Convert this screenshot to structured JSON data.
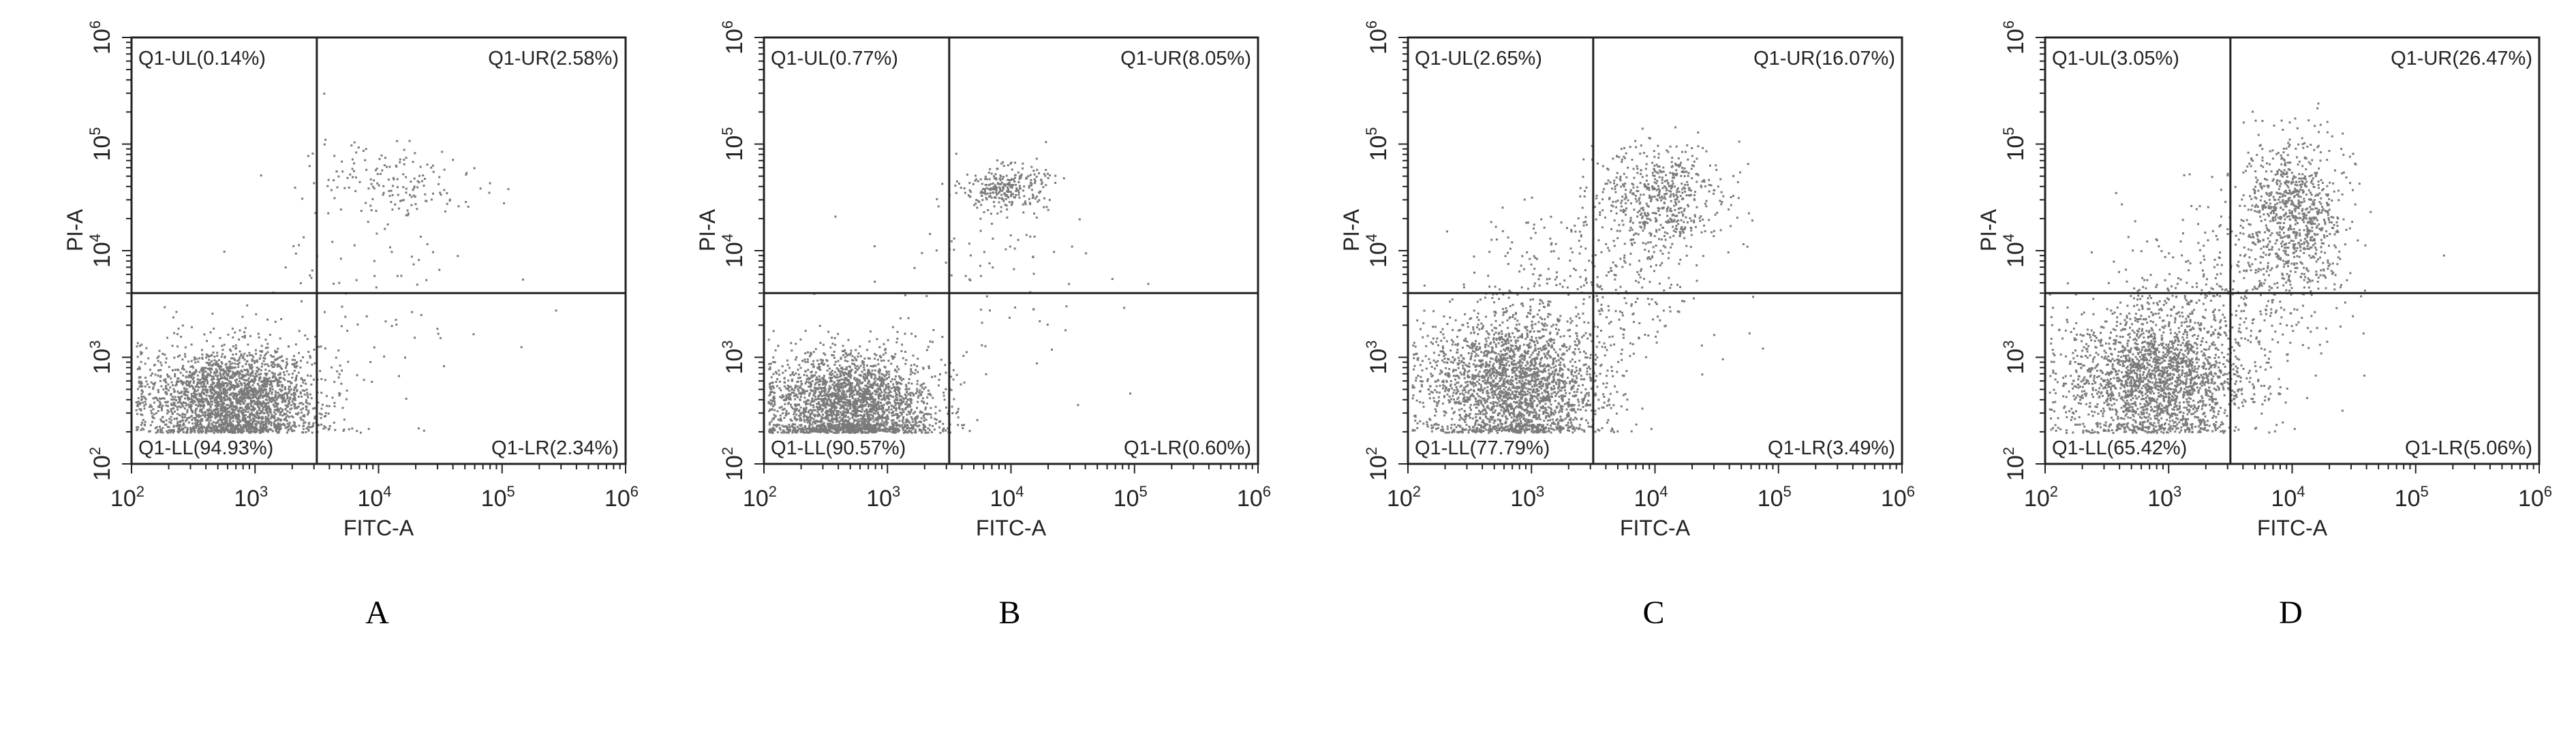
{
  "chart_data": [
    {
      "type": "scatter",
      "panel_label": "A",
      "xlabel": "FITC-A",
      "ylabel": "PI-A",
      "x_scale": "log",
      "y_scale": "log",
      "xlim": [
        100,
        1000000
      ],
      "ylim": [
        100,
        1000000
      ],
      "x_ticks": [
        2,
        3,
        4,
        5,
        6
      ],
      "y_ticks": [
        2,
        3,
        4,
        5,
        6
      ],
      "gate": {
        "x": 3162,
        "y": 4000
      },
      "quadrants": {
        "UL": "Q1-UL(0.14%)",
        "UR": "Q1-UR(2.58%)",
        "LL": "Q1-LL(94.93%)",
        "LR": "Q1-LR(2.34%)"
      },
      "populations": [
        {
          "center_log": [
            2.8,
            2.6
          ],
          "spread_log": [
            0.35,
            0.25
          ],
          "count": 2600
        },
        {
          "center_log": [
            4.15,
            4.65
          ],
          "spread_log": [
            0.32,
            0.17
          ],
          "count": 160
        },
        {
          "center_log": [
            3.8,
            3.5
          ],
          "spread_log": [
            0.6,
            0.6
          ],
          "count": 90
        }
      ]
    },
    {
      "type": "scatter",
      "panel_label": "B",
      "xlabel": "FITC-A",
      "ylabel": "PI-A",
      "x_scale": "log",
      "y_scale": "log",
      "xlim": [
        100,
        1000000
      ],
      "ylim": [
        100,
        1000000
      ],
      "x_ticks": [
        2,
        3,
        4,
        5,
        6
      ],
      "y_ticks": [
        2,
        3,
        4,
        5,
        6
      ],
      "gate": {
        "x": 3162,
        "y": 4000
      },
      "quadrants": {
        "UL": "Q1-UL(0.77%)",
        "UR": "Q1-UR(8.05%)",
        "LL": "Q1-LL(90.57%)",
        "LR": "Q1-LR(0.60%)"
      },
      "populations": [
        {
          "center_log": [
            2.7,
            2.55
          ],
          "spread_log": [
            0.33,
            0.25
          ],
          "count": 2600
        },
        {
          "center_log": [
            3.95,
            4.6
          ],
          "spread_log": [
            0.17,
            0.1
          ],
          "count": 280
        },
        {
          "center_log": [
            3.8,
            3.8
          ],
          "spread_log": [
            0.5,
            0.5
          ],
          "count": 90
        }
      ]
    },
    {
      "type": "scatter",
      "panel_label": "C",
      "xlabel": "FITC-A",
      "ylabel": "PI-A",
      "x_scale": "log",
      "y_scale": "log",
      "xlim": [
        100,
        1000000
      ],
      "ylim": [
        100,
        1000000
      ],
      "x_ticks": [
        2,
        3,
        4,
        5,
        6
      ],
      "y_ticks": [
        2,
        3,
        4,
        5,
        6
      ],
      "gate": {
        "x": 3162,
        "y": 4000
      },
      "quadrants": {
        "UL": "Q1-UL(2.65%)",
        "UR": "Q1-UR(16.07%)",
        "LL": "Q1-LL(77.79%)",
        "LR": "Q1-LR(3.49%)"
      },
      "populations": [
        {
          "center_log": [
            2.85,
            2.75
          ],
          "spread_log": [
            0.35,
            0.33
          ],
          "count": 2400
        },
        {
          "center_log": [
            4.05,
            4.5
          ],
          "spread_log": [
            0.25,
            0.25
          ],
          "count": 550
        },
        {
          "center_log": [
            3.5,
            3.7
          ],
          "spread_log": [
            0.45,
            0.45
          ],
          "count": 350
        }
      ]
    },
    {
      "type": "scatter",
      "panel_label": "D",
      "xlabel": "FITC-A",
      "ylabel": "PI-A",
      "x_scale": "log",
      "y_scale": "log",
      "xlim": [
        100,
        1000000
      ],
      "ylim": [
        100,
        1000000
      ],
      "x_ticks": [
        2,
        3,
        4,
        5,
        6
      ],
      "y_ticks": [
        2,
        3,
        4,
        5,
        6
      ],
      "gate": {
        "x": 3162,
        "y": 4000
      },
      "quadrants": {
        "UL": "Q1-UL(3.05%)",
        "UR": "Q1-UR(26.47%)",
        "LL": "Q1-LL(65.42%)",
        "LR": "Q1-LR(5.06%)"
      },
      "populations": [
        {
          "center_log": [
            2.9,
            2.8
          ],
          "spread_log": [
            0.35,
            0.32
          ],
          "count": 2200
        },
        {
          "center_log": [
            4.0,
            4.35
          ],
          "spread_log": [
            0.2,
            0.35
          ],
          "count": 850
        },
        {
          "center_log": [
            3.5,
            3.6
          ],
          "spread_log": [
            0.45,
            0.45
          ],
          "count": 400
        }
      ]
    }
  ]
}
